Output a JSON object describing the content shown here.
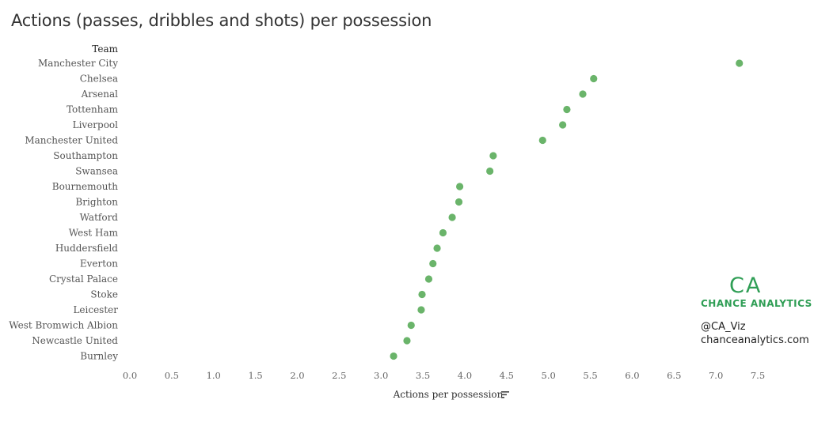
{
  "chart_data": {
    "type": "scatter",
    "title": "Actions (passes, dribbles and shots) per possession",
    "category_header": "Team",
    "xlabel": "Actions per possession",
    "xlim": [
      0,
      7.5
    ],
    "xticks": [
      "0.0",
      "0.5",
      "1.0",
      "1.5",
      "2.0",
      "2.5",
      "3.0",
      "3.5",
      "4.0",
      "4.5",
      "5.0",
      "5.5",
      "6.0",
      "6.5",
      "7.0",
      "7.5"
    ],
    "grid": false,
    "point_color": "#6ab46a",
    "categories": [
      "Manchester City",
      "Chelsea",
      "Arsenal",
      "Tottenham",
      "Liverpool",
      "Manchester United",
      "Southampton",
      "Swansea",
      "Bournemouth",
      "Brighton",
      "Watford",
      "West Ham",
      "Huddersfield",
      "Everton",
      "Crystal Palace",
      "Stoke",
      "Leicester",
      "West Bromwich Albion",
      "Newcastle United",
      "Burnley"
    ],
    "values": [
      7.28,
      5.54,
      5.41,
      5.22,
      5.17,
      4.93,
      4.34,
      4.3,
      3.94,
      3.93,
      3.85,
      3.74,
      3.67,
      3.62,
      3.57,
      3.49,
      3.48,
      3.36,
      3.31,
      3.15
    ]
  },
  "branding": {
    "logo_letters": "CA",
    "name": "CHANCE ANALYTICS",
    "handle": "@CA_Viz",
    "website": "chanceanalytics.com",
    "accent_color": "#2f9e55"
  },
  "icons": {
    "sort": "sort-icon"
  }
}
